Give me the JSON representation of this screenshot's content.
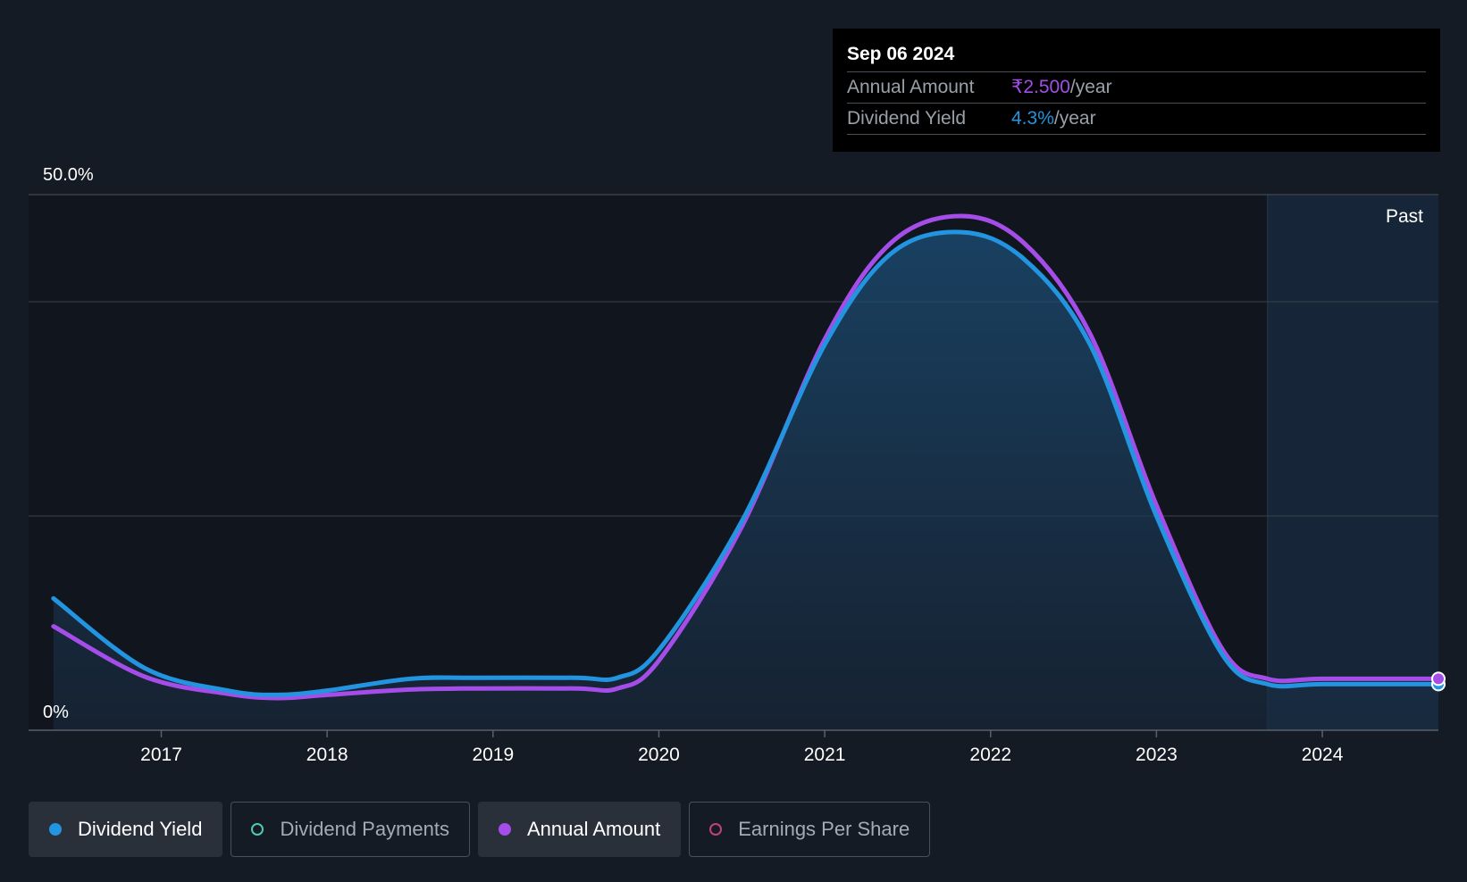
{
  "colors": {
    "background": "#151b24",
    "yield_line": "#2394df",
    "annual_line": "#a54de8",
    "payments_ring": "#4ec9b8",
    "eps_ring": "#c2417a",
    "grid": "#3a4049"
  },
  "tooltip": {
    "date": "Sep 06 2024",
    "annual_amount_label": "Annual Amount",
    "annual_amount_value": "₹2.500",
    "annual_amount_unit": "/year",
    "dividend_yield_label": "Dividend Yield",
    "dividend_yield_value": "4.3%",
    "dividend_yield_unit": "/year"
  },
  "past_label": "Past",
  "legend": [
    {
      "label": "Dividend Yield",
      "color": "#2394df",
      "active": true,
      "filled": true,
      "icon": "dividend-yield-dot-icon"
    },
    {
      "label": "Dividend Payments",
      "color": "#4ec9b8",
      "active": false,
      "filled": false,
      "icon": "dividend-payments-ring-icon"
    },
    {
      "label": "Annual Amount",
      "color": "#a54de8",
      "active": true,
      "filled": true,
      "icon": "annual-amount-dot-icon"
    },
    {
      "label": "Earnings Per Share",
      "color": "#c2417a",
      "active": false,
      "filled": false,
      "icon": "earnings-per-share-ring-icon"
    }
  ],
  "chart_data": {
    "type": "line",
    "title": "",
    "xlabel": "",
    "ylabel": "",
    "x_ticks": [
      "2017",
      "2018",
      "2019",
      "2020",
      "2021",
      "2022",
      "2023",
      "2024"
    ],
    "y_ticks": [
      "0%",
      "50.0%"
    ],
    "ylim": [
      0,
      50
    ],
    "xlim": [
      2016.2,
      2024.7
    ],
    "past_region_start": 2023.67,
    "series": [
      {
        "name": "Dividend Yield",
        "color": "#2394df",
        "area": true,
        "points": [
          [
            2016.35,
            12.3
          ],
          [
            2016.9,
            5.8
          ],
          [
            2017.4,
            3.7
          ],
          [
            2017.7,
            3.3
          ],
          [
            2018.0,
            3.7
          ],
          [
            2018.5,
            4.8
          ],
          [
            2018.9,
            4.9
          ],
          [
            2019.5,
            4.9
          ],
          [
            2019.75,
            4.9
          ],
          [
            2020.0,
            7.5
          ],
          [
            2020.5,
            19.5
          ],
          [
            2021.0,
            36.0
          ],
          [
            2021.4,
            44.5
          ],
          [
            2021.82,
            46.5
          ],
          [
            2022.2,
            44.0
          ],
          [
            2022.6,
            36.0
          ],
          [
            2023.0,
            20.0
          ],
          [
            2023.4,
            7.0
          ],
          [
            2023.67,
            4.3
          ],
          [
            2024.0,
            4.3
          ],
          [
            2024.7,
            4.3
          ]
        ]
      },
      {
        "name": "Annual Amount",
        "color": "#a54de8",
        "area": false,
        "points": [
          [
            2016.35,
            9.7
          ],
          [
            2016.9,
            5.0
          ],
          [
            2017.4,
            3.4
          ],
          [
            2017.7,
            3.0
          ],
          [
            2018.0,
            3.3
          ],
          [
            2018.5,
            3.8
          ],
          [
            2018.9,
            3.9
          ],
          [
            2019.5,
            3.9
          ],
          [
            2019.75,
            3.9
          ],
          [
            2020.0,
            6.5
          ],
          [
            2020.5,
            19.0
          ],
          [
            2021.0,
            36.5
          ],
          [
            2021.4,
            45.5
          ],
          [
            2021.82,
            48.0
          ],
          [
            2022.2,
            45.5
          ],
          [
            2022.6,
            37.0
          ],
          [
            2023.0,
            21.0
          ],
          [
            2023.4,
            7.5
          ],
          [
            2023.67,
            4.8
          ],
          [
            2024.0,
            4.8
          ],
          [
            2024.7,
            4.8
          ]
        ]
      }
    ]
  }
}
